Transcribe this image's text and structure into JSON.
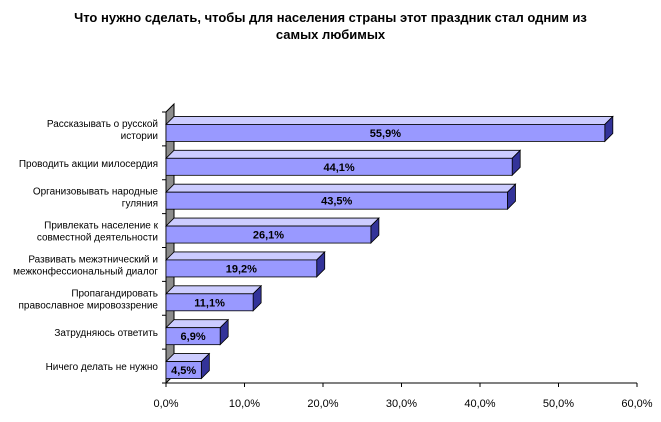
{
  "chart_data": {
    "type": "bar",
    "orientation": "horizontal",
    "title": [
      "Что нужно сделать, чтобы для населения страны этот праздник стал одним из",
      "самых любимых"
    ],
    "categories": [
      [
        "Рассказывать о русской",
        "истории"
      ],
      [
        "Проводить акции милосердия"
      ],
      [
        "Организовывать народные",
        "гуляния"
      ],
      [
        "Привлекать население к",
        "совместной деятельности"
      ],
      [
        "Развивать межэтнический и",
        "межконфессиональный диалог"
      ],
      [
        "Пропагандировать",
        "православное мировоззрение"
      ],
      [
        "Затрудняюсь ответить"
      ],
      [
        "Ничего делать не нужно"
      ]
    ],
    "values": [
      55.9,
      44.1,
      43.5,
      26.1,
      19.2,
      11.1,
      6.9,
      4.5
    ],
    "data_labels": [
      "55,9%",
      "44,1%",
      "43,5%",
      "26,1%",
      "19,2%",
      "11,1%",
      "6,9%",
      "4,5%"
    ],
    "xlim": [
      0,
      60
    ],
    "x_ticks": [
      "0,0%",
      "10,0%",
      "20,0%",
      "30,0%",
      "40,0%",
      "50,0%",
      "60,0%"
    ],
    "xlabel": "",
    "ylabel": "",
    "legend": "none",
    "grid": false,
    "style": "3d",
    "colors": {
      "bar_front": "#9999ff",
      "bar_top": "#ccccff",
      "bar_side": "#333399",
      "wall": "#8c8c8c"
    }
  }
}
